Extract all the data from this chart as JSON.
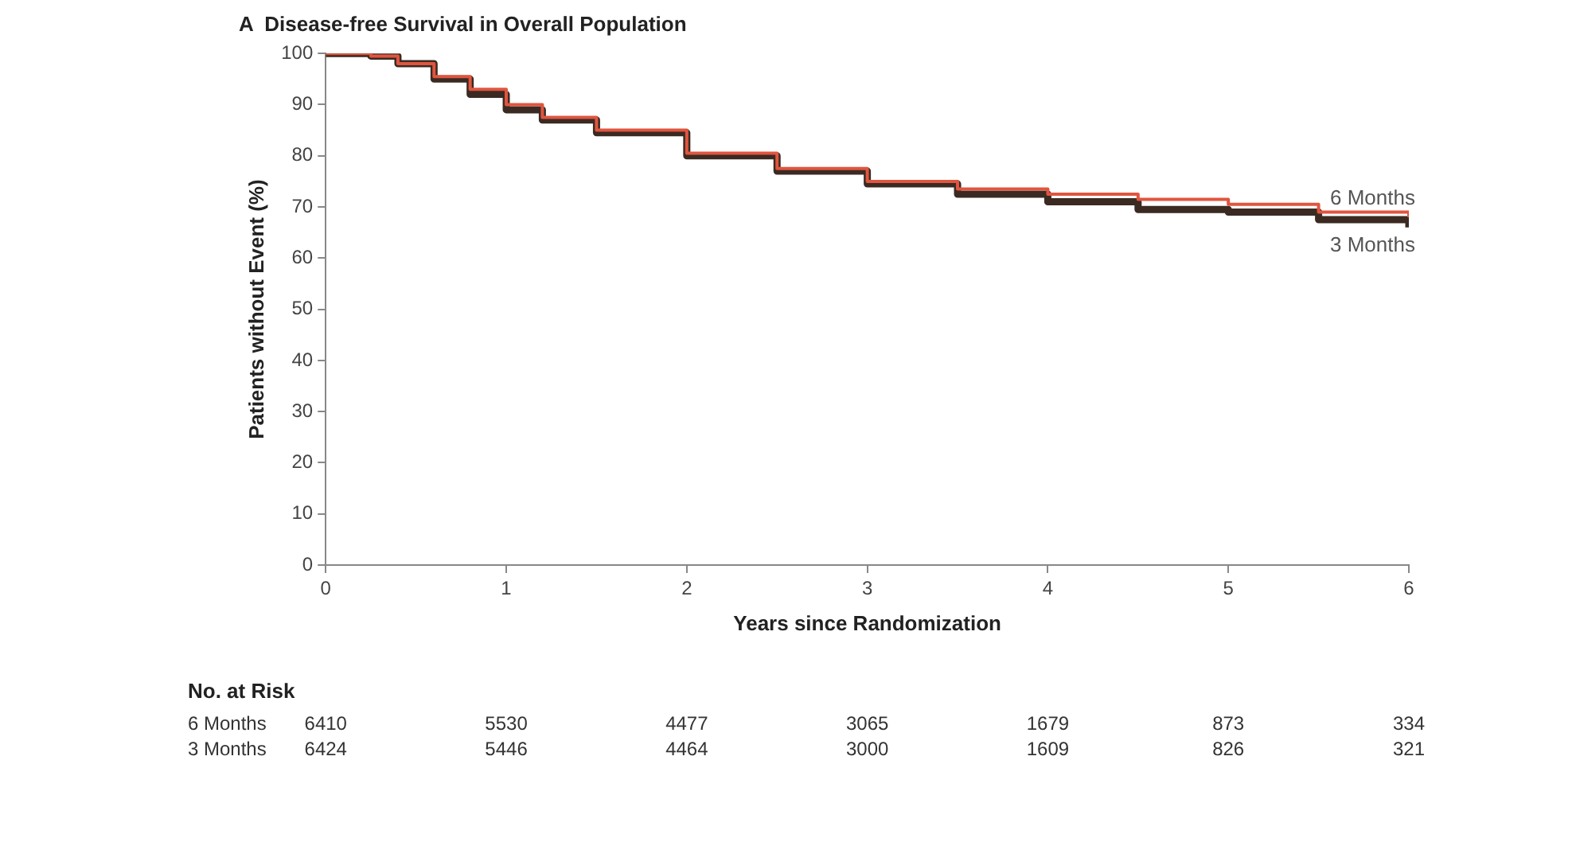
{
  "chart_data": {
    "type": "step",
    "title": "A  Disease-free Survival in Overall Population",
    "xlabel": "Years since Randomization",
    "ylabel": "Patients without Event (%)",
    "x": [
      0,
      0.25,
      0.4,
      0.6,
      0.8,
      1.0,
      1.2,
      1.5,
      2,
      2.5,
      3,
      3.5,
      4,
      4.5,
      5,
      5.5,
      6
    ],
    "series": [
      {
        "name": "6 Months",
        "color": "#e0553f",
        "values": [
          100,
          99.5,
          98,
          95.5,
          93,
          90,
          87.5,
          85,
          80.5,
          77.5,
          75,
          73.5,
          72.5,
          71.5,
          70.5,
          69,
          68
        ]
      },
      {
        "name": "3 Months",
        "color": "#3a2a22",
        "values": [
          100,
          99.5,
          98,
          95,
          92,
          89,
          87,
          84.5,
          80,
          77,
          74.5,
          72.5,
          71,
          69.5,
          69,
          67.5,
          66
        ]
      }
    ],
    "xlim": [
      0,
      6
    ],
    "xticks": [
      0,
      1,
      2,
      3,
      4,
      5,
      6
    ],
    "ylim": [
      0,
      100
    ],
    "yticks": [
      0,
      10,
      20,
      30,
      40,
      50,
      60,
      70,
      80,
      90,
      100
    ],
    "grid": false,
    "legend": false,
    "marker": "none",
    "line_style": "solid",
    "annotations": [
      "No. at Risk",
      "6410",
      "5530",
      "4477",
      "3065",
      "1679",
      "873",
      "334",
      "6424",
      "5446",
      "4464",
      "3000",
      "1609",
      "826",
      "321"
    ]
  }
}
